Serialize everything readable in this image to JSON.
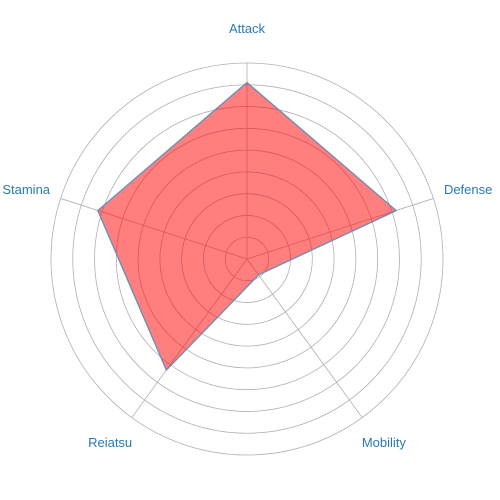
{
  "chart_data": {
    "type": "radar",
    "axes": [
      "Attack",
      "Defense",
      "Mobility",
      "Reiatsu",
      "Stamina"
    ],
    "series": [
      {
        "values": [
          9,
          8,
          1,
          7,
          8
        ]
      }
    ],
    "range": [
      0,
      10
    ],
    "rings": 9,
    "grid": true,
    "colors": {
      "fill": "#ff0000",
      "fill_opacity": 0.5,
      "stroke": "#7a8db3",
      "grid": "#b0b0b0",
      "label": "#2a7ab0"
    }
  }
}
